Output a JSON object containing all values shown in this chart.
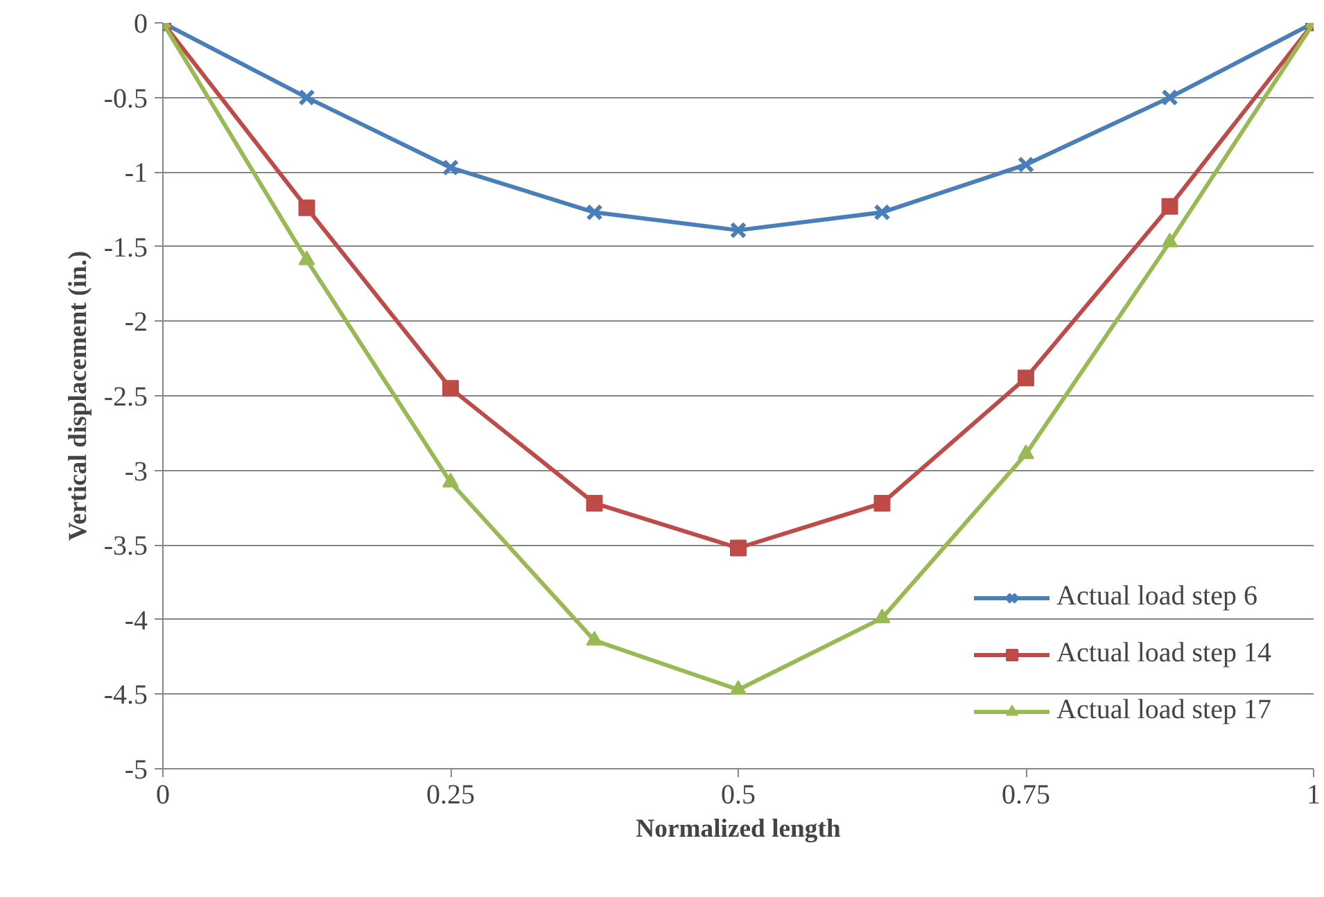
{
  "chart_data": {
    "type": "line",
    "xlabel": "Normalized length",
    "ylabel": "Vertical displacement (in.)",
    "x": [
      0,
      0.125,
      0.25,
      0.375,
      0.5,
      0.625,
      0.75,
      0.875,
      1
    ],
    "series": [
      {
        "name": "Actual load step 6",
        "color": "#4a7ebb",
        "marker": "cross",
        "values": [
          0,
          -0.5,
          -0.97,
          -1.27,
          -1.39,
          -1.27,
          -0.95,
          -0.5,
          0
        ]
      },
      {
        "name": "Actual load step 14",
        "color": "#be4b48",
        "marker": "square",
        "values": [
          0,
          -1.24,
          -2.45,
          -3.22,
          -3.52,
          -3.22,
          -2.38,
          -1.23,
          0
        ]
      },
      {
        "name": "Actual load step 17",
        "color": "#98b954",
        "marker": "triangle",
        "values": [
          0,
          -1.59,
          -3.08,
          -4.14,
          -4.47,
          -3.99,
          -2.89,
          -1.47,
          0
        ]
      }
    ],
    "xlim": [
      0,
      1
    ],
    "xticks": [
      0,
      0.25,
      0.5,
      0.75,
      1
    ],
    "ylim": [
      -5,
      0
    ],
    "yticks": [
      -5,
      -4.5,
      -4,
      -3.5,
      -3,
      -2.5,
      -2,
      -1.5,
      -1,
      -0.5,
      0
    ],
    "grid": "y",
    "legend": "bottom right",
    "line_style": "solid"
  }
}
